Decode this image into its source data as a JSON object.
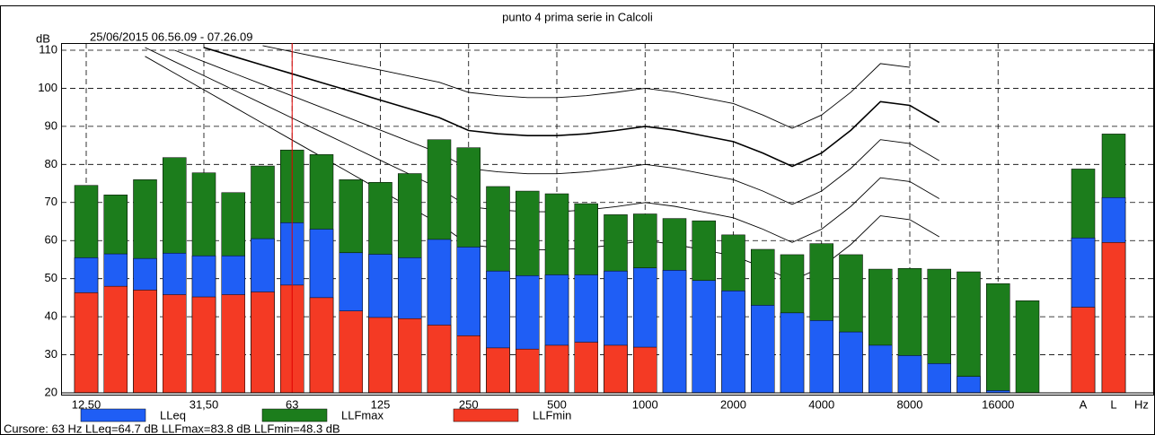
{
  "chart_data": {
    "type": "overlapped-bar",
    "title": "punto 4 prima serie in Calcoli",
    "subtitle": "25/06/2015 06.56.09 - 07.26.09",
    "y_label": "dB",
    "x_label": "Hz",
    "categories": [
      "12,50",
      null,
      null,
      null,
      "31,50",
      null,
      null,
      "63",
      null,
      null,
      "125",
      null,
      null,
      "250",
      null,
      null,
      "500",
      null,
      null,
      "1000",
      null,
      null,
      "2000",
      null,
      null,
      "4000",
      null,
      null,
      "8000",
      null,
      null,
      "16000",
      null,
      "A",
      "L"
    ],
    "series": [
      {
        "name": "LLeq",
        "color": "#1f5ef5",
        "values": [
          55.5,
          56.5,
          55.3,
          56.7,
          56,
          56,
          60.5,
          64.7,
          63,
          56.8,
          56.4,
          55.5,
          60.3,
          58.3,
          52,
          50.8,
          51,
          51,
          52,
          52.8,
          52.2,
          49.5,
          46.8,
          43,
          41,
          39,
          36,
          32.5,
          29.8,
          27.7,
          24.3,
          20.6,
          null,
          60.7,
          71.3
        ]
      },
      {
        "name": "LLFmax",
        "color": "#1c7d1c",
        "values": [
          74.5,
          72,
          76,
          81.8,
          77.8,
          72.6,
          79.6,
          83.8,
          82.6,
          76,
          75.3,
          77.6,
          86.5,
          84.4,
          74.2,
          73,
          72.3,
          69.7,
          66.8,
          67,
          65.8,
          65.2,
          61.5,
          57.7,
          56.3,
          59.2,
          56.3,
          52.5,
          52.7,
          52.5,
          51.8,
          48.7,
          44.2,
          78.8,
          88
        ]
      },
      {
        "name": "LLFmin",
        "color": "#f43a24",
        "values": [
          46.3,
          48,
          47,
          45.8,
          45.2,
          45.8,
          46.5,
          48.3,
          45,
          41.5,
          39.8,
          39.5,
          37.8,
          35,
          31.8,
          31.5,
          32.5,
          33.3,
          32.5,
          32,
          null,
          null,
          null,
          null,
          null,
          null,
          null,
          null,
          null,
          null,
          null,
          null,
          null,
          42.5,
          59.5
        ]
      }
    ],
    "ylim": [
      20,
      110
    ],
    "yticks": [
      20,
      30,
      40,
      50,
      60,
      70,
      80,
      90,
      100,
      110
    ],
    "grid": true,
    "cursor_text": "Cursore: 63 Hz  LLeq=64.7 dB  LLFmax=83.8 dB  LLFmin=48.3 dB"
  }
}
